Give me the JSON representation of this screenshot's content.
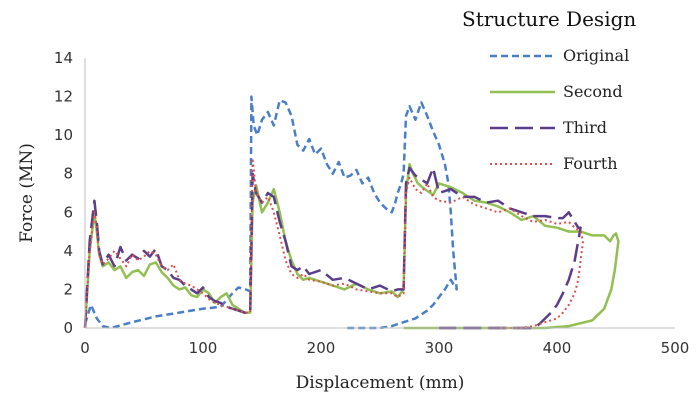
{
  "chart_data": {
    "type": "line",
    "xlabel": "Displacement (mm)",
    "ylabel": "Force (MN)",
    "xlim": [
      0,
      500
    ],
    "ylim": [
      0,
      14
    ],
    "xticks": [
      "0",
      "100",
      "200",
      "300",
      "400",
      "500"
    ],
    "yticks": [
      "0",
      "2",
      "4",
      "6",
      "8",
      "10",
      "12",
      "14"
    ],
    "grid": false,
    "legend_title": "Structure Design",
    "legend_position": "top-right",
    "series": [
      {
        "name": "Original",
        "color": "#4a7fc8",
        "dash": "dashed",
        "x": [
          0,
          5,
          10,
          15,
          22,
          40,
          60,
          80,
          100,
          115,
          125,
          130,
          136,
          140,
          141,
          143,
          146,
          150,
          155,
          160,
          165,
          170,
          175,
          180,
          185,
          190,
          195,
          200,
          205,
          210,
          215,
          220,
          225,
          230,
          235,
          240,
          245,
          250,
          255,
          260,
          263,
          265,
          268,
          270,
          272,
          275,
          280,
          285,
          290,
          295,
          300,
          305,
          308,
          310,
          312,
          315,
          310,
          305,
          300,
          295,
          290,
          280,
          270,
          260,
          250,
          240,
          230,
          220
        ],
        "y": [
          0.2,
          1.2,
          0.5,
          0.1,
          0.0,
          0.3,
          0.6,
          0.8,
          1.0,
          1.1,
          1.8,
          2.1,
          2.0,
          1.9,
          12.0,
          10.5,
          10.0,
          10.8,
          11.2,
          10.5,
          11.8,
          11.7,
          11.0,
          9.5,
          9.2,
          9.8,
          9.0,
          9.3,
          8.5,
          8.0,
          8.6,
          7.8,
          7.9,
          8.2,
          7.5,
          7.8,
          7.0,
          6.5,
          6.2,
          6.0,
          6.5,
          7.0,
          7.5,
          8.0,
          11.0,
          11.5,
          10.8,
          11.7,
          11.0,
          10.2,
          9.5,
          8.5,
          7.5,
          6.0,
          4.0,
          2.0,
          2.5,
          2.0,
          1.6,
          1.2,
          0.9,
          0.5,
          0.3,
          0.1,
          0.0,
          0.0,
          0.0,
          0.0
        ]
      },
      {
        "name": "Second",
        "color": "#92c050",
        "dash": "solid",
        "x": [
          0,
          4,
          8,
          10,
          12,
          15,
          20,
          25,
          30,
          35,
          40,
          45,
          50,
          55,
          60,
          65,
          70,
          75,
          80,
          85,
          90,
          95,
          100,
          105,
          110,
          115,
          120,
          125,
          130,
          135,
          138,
          140,
          142,
          145,
          150,
          155,
          160,
          165,
          170,
          175,
          180,
          185,
          190,
          200,
          210,
          220,
          230,
          240,
          250,
          260,
          265,
          270,
          272,
          275,
          278,
          282,
          288,
          295,
          300,
          310,
          320,
          330,
          340,
          350,
          360,
          370,
          380,
          390,
          400,
          410,
          420,
          430,
          440,
          445,
          448,
          450,
          452,
          451,
          449,
          446,
          440,
          430,
          410,
          390,
          370,
          350,
          330,
          310,
          290,
          270
        ],
        "y": [
          0,
          4.0,
          6.0,
          5.0,
          3.8,
          3.2,
          3.4,
          3.0,
          3.2,
          2.6,
          2.9,
          3.0,
          2.7,
          3.3,
          3.4,
          2.9,
          2.6,
          2.2,
          2.0,
          2.1,
          1.7,
          1.6,
          2.0,
          1.8,
          1.3,
          1.6,
          1.8,
          1.2,
          1.0,
          0.8,
          0.8,
          0.8,
          6.5,
          7.4,
          6.0,
          6.5,
          7.2,
          6.0,
          4.5,
          3.5,
          2.8,
          2.5,
          2.6,
          2.4,
          2.2,
          2.0,
          2.3,
          2.0,
          1.8,
          1.9,
          1.6,
          2.0,
          7.0,
          8.5,
          8.0,
          7.5,
          7.2,
          6.9,
          7.5,
          7.3,
          7.0,
          6.6,
          6.5,
          6.3,
          6.0,
          5.6,
          5.8,
          5.3,
          5.2,
          5.0,
          5.0,
          4.8,
          4.8,
          4.5,
          4.8,
          4.9,
          4.5,
          4.0,
          3.0,
          2.0,
          1.0,
          0.4,
          0.1,
          0.0,
          0.0,
          0.0,
          0.0,
          0.0,
          0.0,
          0.0
        ]
      },
      {
        "name": "Third",
        "color": "#5b3e8a",
        "dash": "longdash",
        "x": [
          0,
          4,
          8,
          10,
          12,
          15,
          20,
          25,
          30,
          35,
          40,
          45,
          50,
          55,
          60,
          65,
          70,
          75,
          80,
          85,
          90,
          95,
          100,
          105,
          110,
          115,
          120,
          125,
          130,
          135,
          138,
          140,
          142,
          145,
          150,
          155,
          160,
          165,
          170,
          175,
          180,
          185,
          190,
          200,
          210,
          220,
          230,
          240,
          250,
          260,
          265,
          270,
          272,
          275,
          280,
          285,
          290,
          295,
          300,
          310,
          320,
          330,
          340,
          350,
          360,
          370,
          380,
          390,
          400,
          405,
          410,
          415,
          418,
          420,
          418,
          415,
          410,
          405,
          400,
          395,
          390,
          385,
          380,
          370,
          360,
          350,
          340,
          330,
          320,
          310,
          300
        ],
        "y": [
          0,
          4.5,
          6.6,
          5.5,
          4.0,
          3.3,
          3.8,
          3.2,
          4.2,
          3.5,
          3.8,
          3.6,
          4.0,
          3.7,
          4.1,
          3.2,
          3.0,
          2.6,
          2.5,
          2.2,
          2.0,
          1.8,
          2.1,
          1.6,
          1.4,
          1.3,
          1.1,
          1.0,
          0.9,
          0.8,
          0.8,
          0.8,
          8.0,
          7.0,
          6.5,
          7.0,
          6.8,
          5.5,
          4.5,
          3.2,
          3.0,
          3.2,
          2.8,
          3.0,
          2.5,
          2.6,
          2.3,
          2.0,
          2.2,
          1.9,
          2.0,
          2.0,
          7.5,
          8.3,
          7.9,
          7.7,
          7.5,
          8.3,
          7.0,
          7.2,
          6.8,
          6.8,
          6.5,
          6.6,
          6.2,
          6.0,
          5.8,
          5.8,
          5.7,
          5.7,
          6.0,
          5.5,
          5.2,
          5.2,
          4.5,
          3.5,
          2.5,
          1.8,
          1.2,
          0.8,
          0.5,
          0.2,
          0.0,
          0.0,
          0.0,
          0.0,
          0.0,
          0.0,
          0.0,
          0.0,
          0.0
        ]
      },
      {
        "name": "Fourth",
        "color": "#d94f4f",
        "dash": "dotted",
        "x": [
          0,
          4,
          8,
          10,
          12,
          15,
          20,
          25,
          30,
          35,
          40,
          45,
          50,
          55,
          60,
          65,
          70,
          75,
          80,
          85,
          90,
          95,
          100,
          105,
          110,
          115,
          120,
          125,
          130,
          135,
          138,
          140,
          142,
          145,
          150,
          155,
          160,
          165,
          170,
          175,
          180,
          185,
          190,
          200,
          210,
          220,
          230,
          240,
          250,
          260,
          265,
          270,
          272,
          275,
          280,
          285,
          290,
          295,
          300,
          310,
          320,
          330,
          340,
          350,
          360,
          370,
          380,
          390,
          400,
          410,
          415,
          420,
          422,
          420,
          418,
          415,
          410,
          405,
          400,
          395,
          390,
          385,
          380,
          370,
          360,
          350
        ],
        "y": [
          0,
          4.0,
          6.0,
          5.2,
          3.8,
          3.3,
          3.6,
          4.0,
          3.6,
          3.2,
          3.8,
          3.5,
          3.7,
          4.0,
          3.8,
          3.2,
          3.0,
          3.3,
          2.5,
          2.3,
          2.2,
          2.0,
          1.8,
          1.5,
          1.3,
          1.2,
          1.1,
          1.0,
          0.9,
          0.8,
          0.8,
          0.8,
          8.8,
          7.0,
          6.5,
          6.8,
          6.0,
          4.8,
          3.5,
          2.8,
          2.6,
          2.8,
          2.5,
          2.4,
          2.2,
          2.3,
          2.0,
          1.9,
          1.8,
          1.8,
          1.6,
          1.8,
          7.0,
          7.8,
          7.2,
          7.0,
          7.5,
          6.8,
          6.6,
          6.5,
          6.8,
          6.4,
          6.2,
          6.0,
          6.2,
          5.8,
          5.5,
          5.6,
          5.4,
          5.5,
          5.2,
          5.0,
          4.5,
          3.5,
          2.5,
          1.8,
          1.2,
          0.8,
          0.5,
          0.4,
          0.3,
          0.2,
          0.1,
          0.0,
          0.0,
          0.0
        ]
      }
    ]
  }
}
